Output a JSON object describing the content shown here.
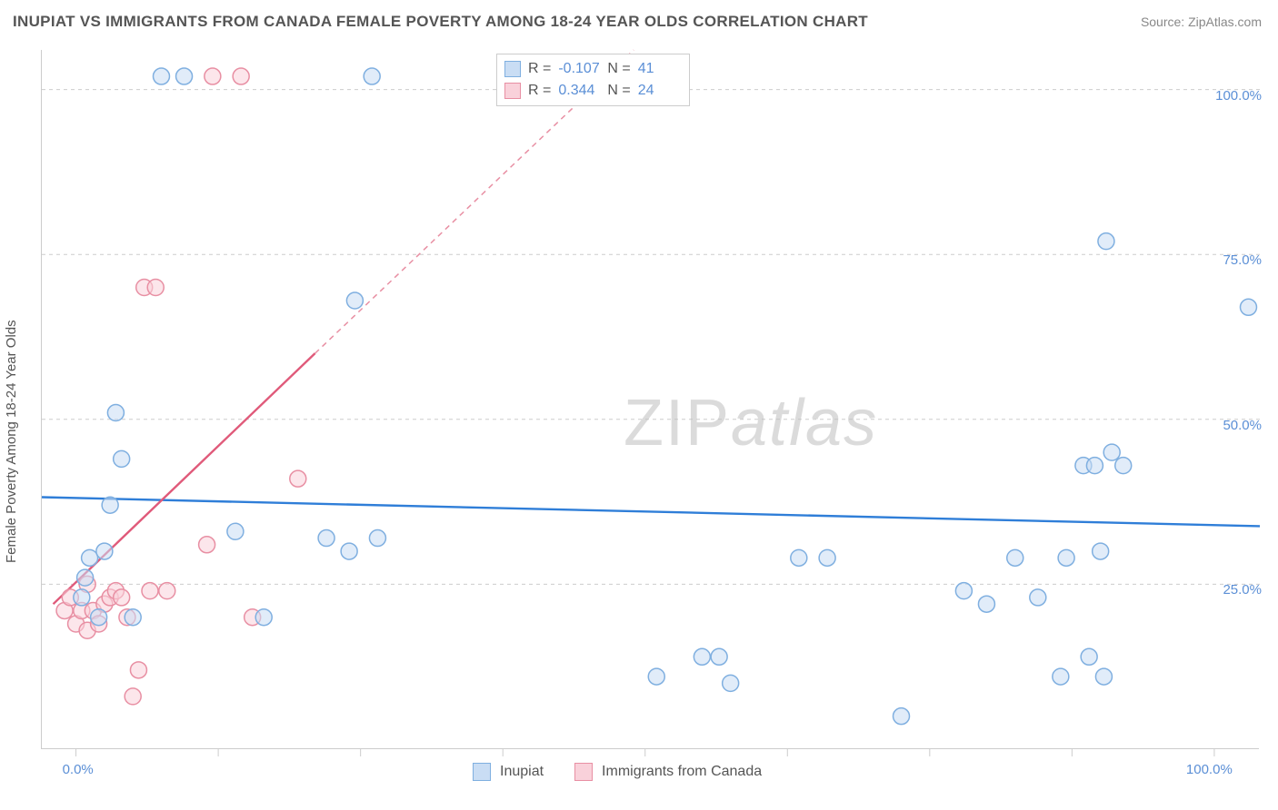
{
  "title": "INUPIAT VS IMMIGRANTS FROM CANADA FEMALE POVERTY AMONG 18-24 YEAR OLDS CORRELATION CHART",
  "source": "Source: ZipAtlas.com",
  "watermark_zip": "ZIP",
  "watermark_atlas": "atlas",
  "y_axis_title": "Female Poverty Among 18-24 Year Olds",
  "colors": {
    "series_a_fill": "#c9ddf4",
    "series_a_stroke": "#7fafe0",
    "series_a_line": "#2f7ed8",
    "series_b_fill": "#f9d1da",
    "series_b_stroke": "#e88fa3",
    "series_b_line": "#e05a7a",
    "grid": "#cccccc",
    "tick_label": "#5b8fd6",
    "text": "#555555",
    "background": "#ffffff",
    "watermark": "#bfbfbf"
  },
  "chart": {
    "type": "scatter",
    "xlim": [
      -3,
      104
    ],
    "ylim": [
      0,
      106
    ],
    "y_ticks": [
      25,
      50,
      75,
      100
    ],
    "y_tick_labels": [
      "25.0%",
      "50.0%",
      "75.0%",
      "100.0%"
    ],
    "x_ticks": [
      0,
      12.5,
      25,
      37.5,
      50,
      62.5,
      75,
      87.5,
      100
    ],
    "x_tick_labels_shown": {
      "0": "0.0%",
      "100": "100.0%"
    },
    "marker_radius": 9,
    "marker_stroke_width": 1.5,
    "marker_fill_opacity": 0.55,
    "trend_line_width": 2.4,
    "dashed_extension_dash": "6 5"
  },
  "stats": {
    "label_R": "R =",
    "label_N": "N =",
    "a": {
      "R": "-0.107",
      "N": "41"
    },
    "b": {
      "R": "0.344",
      "N": "24"
    }
  },
  "legend": {
    "a": "Inupiat",
    "b": "Immigrants from Canada"
  },
  "series_a": {
    "name": "Inupiat",
    "trend": {
      "x1": -3,
      "y1": 38.2,
      "x2": 104,
      "y2": 33.8
    },
    "points": [
      [
        0.5,
        23
      ],
      [
        0.8,
        26
      ],
      [
        1.2,
        29
      ],
      [
        2.0,
        20
      ],
      [
        2.5,
        30
      ],
      [
        3.0,
        37
      ],
      [
        3.5,
        51
      ],
      [
        4.0,
        44
      ],
      [
        5.0,
        20
      ],
      [
        7.5,
        102
      ],
      [
        9.5,
        102
      ],
      [
        14.0,
        33
      ],
      [
        16.5,
        20
      ],
      [
        22.0,
        32
      ],
      [
        24.0,
        30
      ],
      [
        24.5,
        68
      ],
      [
        26.5,
        32
      ],
      [
        26.0,
        102
      ],
      [
        45.5,
        102
      ],
      [
        51.0,
        11
      ],
      [
        55.0,
        14
      ],
      [
        56.5,
        14
      ],
      [
        57.5,
        10
      ],
      [
        63.5,
        29
      ],
      [
        66.0,
        29
      ],
      [
        72.5,
        5
      ],
      [
        78.0,
        24
      ],
      [
        80.0,
        22
      ],
      [
        82.5,
        29
      ],
      [
        84.5,
        23
      ],
      [
        86.5,
        11
      ],
      [
        87.0,
        29
      ],
      [
        88.5,
        43
      ],
      [
        89.0,
        14
      ],
      [
        89.5,
        43
      ],
      [
        90.0,
        30
      ],
      [
        90.3,
        11
      ],
      [
        90.5,
        77
      ],
      [
        91.0,
        45
      ],
      [
        92.0,
        43
      ],
      [
        103.0,
        67
      ]
    ]
  },
  "series_b": {
    "name": "Immigrants from Canada",
    "trend_solid": {
      "x1": -2,
      "y1": 22,
      "x2": 21,
      "y2": 60
    },
    "trend_dashed": {
      "x1": 21,
      "y1": 60,
      "x2": 49,
      "y2": 106
    },
    "points": [
      [
        -1.0,
        21
      ],
      [
        -0.5,
        23
      ],
      [
        0.0,
        19
      ],
      [
        0.5,
        21
      ],
      [
        1.0,
        18
      ],
      [
        1.0,
        25
      ],
      [
        1.5,
        21
      ],
      [
        2.0,
        19
      ],
      [
        2.5,
        22
      ],
      [
        3.0,
        23
      ],
      [
        3.5,
        24
      ],
      [
        4.0,
        23
      ],
      [
        4.5,
        20
      ],
      [
        5.0,
        8
      ],
      [
        5.5,
        12
      ],
      [
        6.0,
        70
      ],
      [
        6.5,
        24
      ],
      [
        7.0,
        70
      ],
      [
        8.0,
        24
      ],
      [
        11.5,
        31
      ],
      [
        12.0,
        102
      ],
      [
        14.5,
        102
      ],
      [
        15.5,
        20
      ],
      [
        19.5,
        41
      ]
    ]
  }
}
